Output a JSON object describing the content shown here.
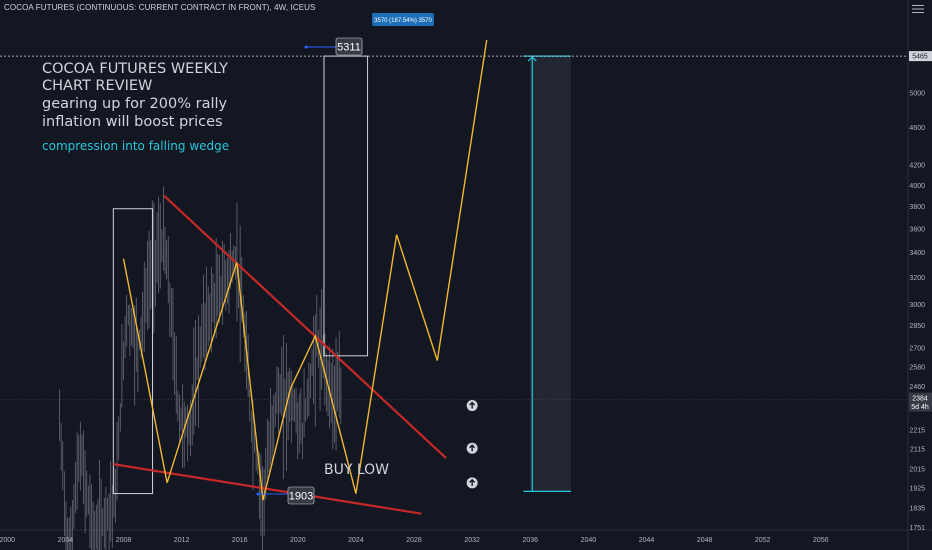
{
  "header": {
    "title": "COCOA FUTURES (CONTINUOUS: CURRENT CONTRACT IN FRONT), 4W, ICEUS"
  },
  "chart_data": {
    "type": "line",
    "title": "",
    "xlabel": "",
    "ylabel": "",
    "scale": "log",
    "grid": false,
    "x_ticks": [
      "2000",
      "2004",
      "2008",
      "2012",
      "2016",
      "2020",
      "2024",
      "2028",
      "2032",
      "2036",
      "2040",
      "2044",
      "2048",
      "2052",
      "2056"
    ],
    "y_ticks": [
      "1751",
      "1835",
      "1925",
      "2015",
      "2115",
      "2215",
      "2460",
      "2580",
      "2700",
      "2850",
      "3000",
      "3200",
      "3400",
      "3600",
      "3800",
      "4000",
      "4200",
      "4600",
      "5000",
      "5465"
    ],
    "xlim": [
      1999.5,
      2062
    ],
    "ylim": [
      1740,
      6050
    ],
    "series": [
      {
        "name": "",
        "type": "projection-path",
        "color": "#f2b731",
        "x": [
          2008.0,
          2011.0,
          2015.8,
          2017.6,
          2019.5,
          2021.2,
          2024.0,
          2026.8,
          2029.6,
          2033.0
        ],
        "y": [
          3350,
          1950,
          3320,
          1870,
          2450,
          2780,
          1900,
          3550,
          2620,
          5680
        ]
      }
    ],
    "price_path": {
      "x": [
        2003.6,
        2004.2,
        2005.0,
        2006.0,
        2007.5,
        2008.2,
        2009.0,
        2010.0,
        2010.8,
        2011.8,
        2012.5,
        2013.5,
        2014.8,
        2015.8,
        2016.8,
        2017.6,
        2018.5,
        2019.5,
        2020.3,
        2021.3,
        2022.3,
        2023.0
      ],
      "y": [
        2250,
        1620,
        2100,
        1700,
        1900,
        2950,
        2700,
        3350,
        3500,
        2300,
        2200,
        2850,
        3150,
        3350,
        2250,
        1870,
        2400,
        2400,
        2200,
        2750,
        2450,
        2400
      ]
    },
    "resistance_line": {
      "x": [
        2010.8,
        2030.2
      ],
      "y": [
        3900,
        2070
      ]
    },
    "support_line": {
      "x": [
        2007.3,
        2028.5
      ],
      "y": [
        2040,
        1810
      ]
    },
    "target_range": {
      "x": [
        2036.0,
        2038.8
      ],
      "y_from": [
        1910
      ],
      "y_to": [
        5465
      ]
    },
    "price_labels": [
      "5311",
      "1903"
    ],
    "target_badge": "3570 (187.54%) 3570",
    "last_price": "2384",
    "countdown": "5d 4h",
    "top_level": "5465",
    "annotations": {
      "title_lines": [
        "COCOA FUTURES WEEKLY",
        "CHART REVIEW",
        "gearing up for 200% rally",
        "inflation will boost prices"
      ],
      "accent": "compression into falling wedge",
      "buy_text": "BUY LOW"
    },
    "colors": {
      "background": "#131722",
      "candles": "#787b86",
      "projection": "#f2b731",
      "trendline": "#c62828",
      "target": "#26c6da",
      "badge": "#1e6fb8",
      "label_box": "#363a45",
      "axis_text": "#b2b5be"
    }
  }
}
